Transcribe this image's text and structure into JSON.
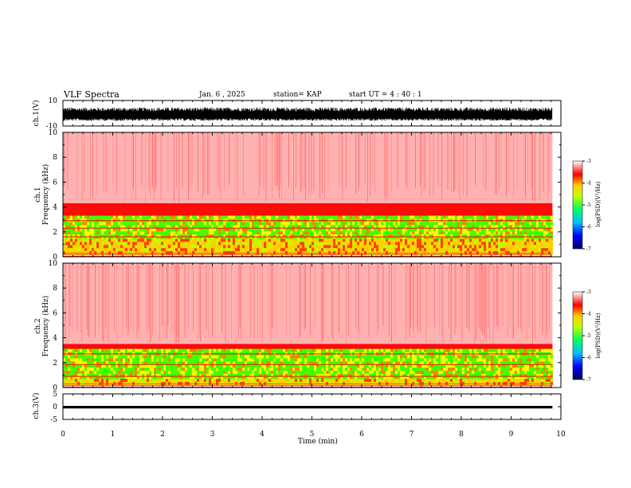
{
  "header": {
    "title": "VLF Spectra",
    "date": "Jan. 6 , 2025",
    "station": "station= KAP",
    "start": "start UT = 4 : 40 : 1"
  },
  "colors": {
    "axis": "#000000",
    "spectrogram_high": "#ff0000",
    "spectrogram_mid": "#ffff00",
    "spectrogram_low": "#00ff00"
  },
  "chart_data": [
    {
      "type": "line",
      "id": "ch1-waveform",
      "ylabel": "ch.1(V)",
      "ylim": [
        -10,
        10
      ],
      "yticks": [
        "10",
        "-10"
      ],
      "xlim": [
        0,
        10
      ],
      "data_end": 9.83,
      "series": [
        {
          "typical_range_v": [
            -4,
            3
          ]
        }
      ]
    },
    {
      "type": "heatmap",
      "id": "ch1-spectrogram",
      "ylabel": "ch.1\nFrequency (kHz)",
      "ylim": [
        0,
        10
      ],
      "yticks": [
        "0",
        "2",
        "4",
        "6",
        "8",
        "10"
      ],
      "xlim": [
        0,
        10
      ],
      "data_end": 9.83,
      "bands": [
        {
          "from": 4.3,
          "to": 10,
          "level": "weak",
          "color": "#ff2020"
        },
        {
          "from": 3.3,
          "to": 4.3,
          "level": "medium",
          "color": "#ff4040"
        },
        {
          "from": 1.3,
          "to": 3.3,
          "level": "strong",
          "color": "#44ff00"
        },
        {
          "from": 0.2,
          "to": 1.3,
          "level": "medium-strong",
          "color": "#ffd000"
        }
      ],
      "colorbar": {
        "label": "log(PSD)(V²/Hz)",
        "ticks": [
          "-3",
          "-4",
          "-5",
          "-6",
          "-7"
        ],
        "range": [
          -7,
          -3
        ]
      }
    },
    {
      "type": "heatmap",
      "id": "ch2-spectrogram",
      "ylabel": "ch.2\nFrequency (kHz)",
      "ylim": [
        0,
        10
      ],
      "yticks": [
        "0",
        "2",
        "4",
        "6",
        "8",
        "10"
      ],
      "xlim": [
        0,
        10
      ],
      "data_end": 9.83,
      "bands": [
        {
          "from": 3.5,
          "to": 10,
          "level": "weak",
          "color": "#ff2020"
        },
        {
          "from": 3.1,
          "to": 3.5,
          "level": "medium",
          "color": "#ff4040"
        },
        {
          "from": 0.6,
          "to": 3.1,
          "level": "strong",
          "color": "#44ff00"
        },
        {
          "from": 0.2,
          "to": 0.6,
          "level": "medium-strong",
          "color": "#ffd000"
        }
      ],
      "colorbar": {
        "label": "log(PSD)(V²/Hz)",
        "ticks": [
          "-3",
          "-4",
          "-5",
          "-6",
          "-7"
        ],
        "range": [
          -7,
          -3
        ]
      }
    },
    {
      "type": "line",
      "id": "ch3-waveform",
      "ylabel": "ch.3(V)",
      "ylim": [
        -5,
        5
      ],
      "yticks": [
        "5",
        "0",
        "-5"
      ],
      "xlim": [
        0,
        10
      ],
      "data_end": 9.83,
      "series": [
        {
          "typical_range_v": [
            -0.7,
            0.3
          ]
        }
      ]
    }
  ],
  "xaxis": {
    "label": "Time (min)",
    "ticks": [
      "0",
      "1",
      "2",
      "3",
      "4",
      "5",
      "6",
      "7",
      "8",
      "9",
      "10"
    ]
  }
}
